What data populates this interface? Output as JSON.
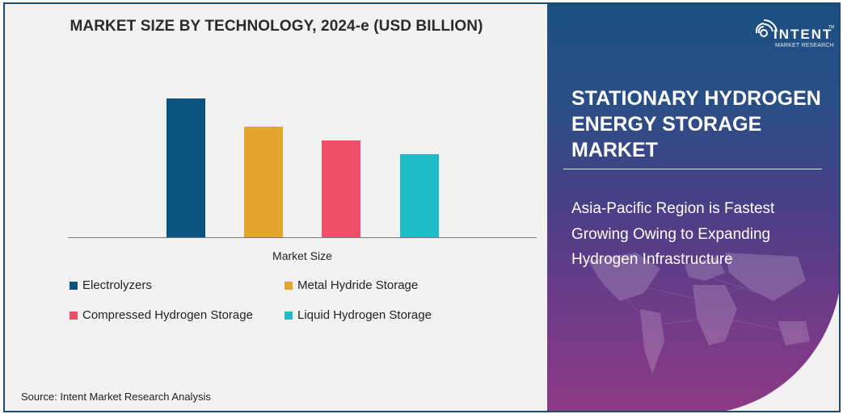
{
  "chart": {
    "title": "MARKET SIZE BY TECHNOLOGY, 2024-e (USD BILLION)",
    "x_label": "Market Size",
    "source": "Source: Intent Market Research Analysis"
  },
  "legend": [
    {
      "label": "Electrolyzers",
      "color": "#0d5380"
    },
    {
      "label": "Metal Hydride Storage",
      "color": "#e3a530"
    },
    {
      "label": "Compressed Hydrogen Storage",
      "color": "#ef4f68"
    },
    {
      "label": "Liquid Hydrogen Storage",
      "color": "#1fbcc7"
    }
  ],
  "panel": {
    "logo_word": "INTENT",
    "logo_sub": "MARKET RESEARCH",
    "logo_tm": "TM",
    "title": "STATIONARY HYDROGEN ENERGY STORAGE MARKET",
    "subtitle": "Asia-Pacific Region is Fastest Growing Owing to Expanding Hydrogen Infrastructure"
  },
  "chart_data": {
    "type": "bar",
    "title": "MARKET SIZE BY TECHNOLOGY, 2024-e (USD BILLION)",
    "xlabel": "Market Size",
    "ylabel": "",
    "categories": [
      "Market Size"
    ],
    "series": [
      {
        "name": "Electrolyzers",
        "values": [
          172
        ],
        "color": "#0d5380"
      },
      {
        "name": "Metal Hydride Storage",
        "values": [
          137
        ],
        "color": "#e3a530"
      },
      {
        "name": "Compressed Hydrogen Storage",
        "values": [
          120
        ],
        "color": "#ef4f68"
      },
      {
        "name": "Liquid Hydrogen Storage",
        "values": [
          103
        ],
        "color": "#1fbcc7"
      }
    ],
    "value_note": "Relative bar heights in pixels; no y-axis ticks or data labels shown",
    "grid": false,
    "legend_position": "bottom",
    "source": "Source: Intent Market Research Analysis"
  }
}
